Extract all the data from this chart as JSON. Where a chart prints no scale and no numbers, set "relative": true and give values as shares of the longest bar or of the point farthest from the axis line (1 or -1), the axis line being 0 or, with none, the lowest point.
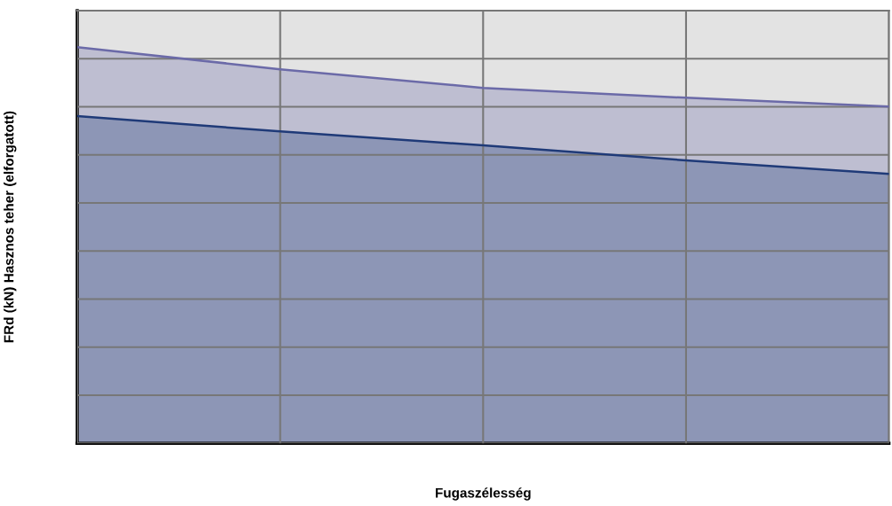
{
  "chart_data": {
    "type": "area",
    "relative": true,
    "xlabel": "Fugaszélesség",
    "ylabel": "FRd (kN) Hasznos teher (elforgatott)",
    "categories": [
      null,
      null,
      null,
      null,
      null
    ],
    "series": [
      {
        "color": "#6b6aa8",
        "values": [
          1,
          0.944,
          0.897,
          0.872,
          0.85
        ]
      },
      {
        "color": "#1f3a78",
        "values": [
          0.826,
          0.787,
          0.752,
          0.714,
          0.68
        ]
      }
    ],
    "grid": true,
    "tick_labels": false
  }
}
